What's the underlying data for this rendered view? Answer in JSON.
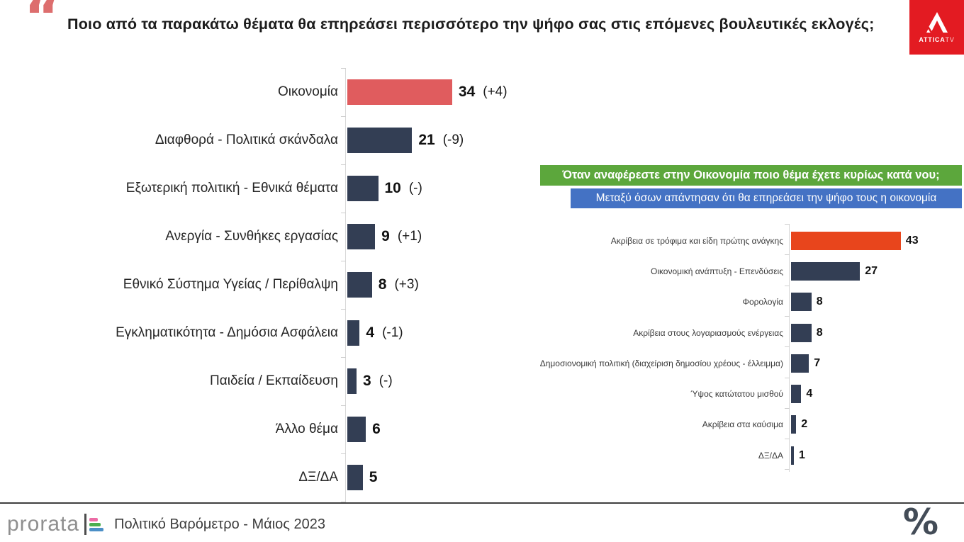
{
  "header": {
    "quote_icon": "“",
    "title": "Ποιο από τα παρακάτω θέματα θα επηρεάσει περισσότερο την ψήφο σας στις επόμενες βουλευτικές εκλογές;",
    "channel_logo": {
      "name": "ATTICA",
      "suffix": "TV"
    }
  },
  "chart_data": [
    {
      "type": "bar",
      "orientation": "horizontal",
      "categories": [
        "Οικονομία",
        "Διαφθορά - Πολιτικά σκάνδαλα",
        "Εξωτερική πολιτική - Εθνικά θέματα",
        "Ανεργία - Συνθήκες εργασίας",
        "Εθνικό Σύστημα Υγείας / Περίθαλψη",
        "Εγκληματικότητα - Δημόσια Ασφάλεια",
        "Παιδεία / Εκπαίδευση",
        "Άλλο θέμα",
        "ΔΞ/ΔΑ"
      ],
      "values": [
        34,
        21,
        10,
        9,
        8,
        4,
        3,
        6,
        5
      ],
      "changes": [
        "(+4)",
        "(-9)",
        "(-)",
        "(+1)",
        "(+3)",
        "(-1)",
        "(-)",
        "",
        ""
      ],
      "bar_colors": [
        "#E05C5E",
        "#333E54",
        "#333E54",
        "#333E54",
        "#333E54",
        "#333E54",
        "#333E54",
        "#333E54",
        "#333E54"
      ],
      "xlim": [
        0,
        40
      ],
      "grid": false,
      "value_labels": true,
      "legend": "none"
    },
    {
      "type": "bar",
      "orientation": "horizontal",
      "title": "Όταν αναφέρεστε στην Οικονομία ποιο θέμα έχετε κυρίως κατά νου;",
      "subtitle": "Μεταξύ όσων απάντησαν ότι θα επηρεάσει την ψήφο τους η οικονομία",
      "title_bg": "#5CA73C",
      "subtitle_bg": "#4472C4",
      "categories": [
        "Ακρίβεια σε τρόφιμα και είδη πρώτης ανάγκης",
        "Οικονομική ανάπτυξη - Επενδύσεις",
        "Φορολογία",
        "Ακρίβεια στους λογαριασμούς ενέργειας",
        "Δημοσιονομική πολιτική (διαχείριση δημοσίου χρέους - έλλειμμα)",
        "Ύψος κατώτατου μισθού",
        "Ακρίβεια στα καύσιμα",
        "ΔΞ/ΔΑ"
      ],
      "values": [
        43,
        27,
        8,
        8,
        7,
        4,
        2,
        1
      ],
      "bar_colors": [
        "#E8451C",
        "#333E54",
        "#333E54",
        "#333E54",
        "#333E54",
        "#333E54",
        "#333E54",
        "#333E54"
      ],
      "xlim": [
        0,
        48
      ],
      "grid": false,
      "value_labels": true,
      "legend": "none"
    }
  ],
  "footer": {
    "brand": "prorata",
    "caption": "Πολιτικό Βαρόμετρο - Μάιος 2023",
    "percent_icon": "%"
  },
  "colors": {
    "accent_red": "#E05C5E",
    "navy": "#333E54",
    "orange": "#E8451C",
    "green_banner": "#5CA73C",
    "blue_banner": "#4472C4",
    "attica_red": "#E31B22",
    "quote_coral": "#DD6E6E"
  }
}
